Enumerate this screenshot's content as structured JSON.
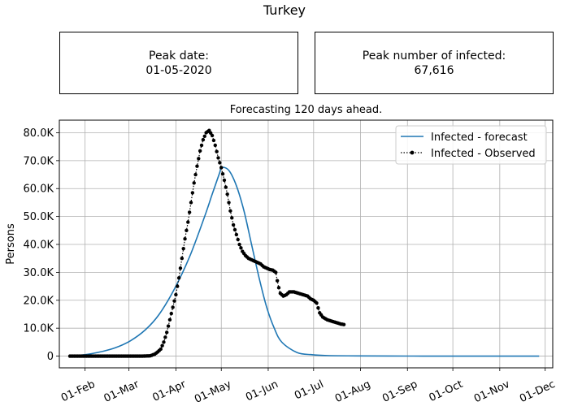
{
  "figure": {
    "title": "Turkey",
    "peak_date_label": "Peak date:",
    "peak_date": "01-05-2020",
    "peak_count_label": "Peak number of infected:",
    "peak_count": "67,616"
  },
  "chart_data": {
    "type": "line",
    "title": "Forecasting 120 days ahead.",
    "xlabel": "",
    "ylabel": "Persons",
    "x_axis": "date",
    "xlim": [
      "2020-01-15",
      "2020-12-06"
    ],
    "ylim": [
      -4200,
      84500
    ],
    "x_tick_labels": [
      "01-Feb",
      "01-Mar",
      "01-Apr",
      "01-May",
      "01-Jun",
      "01-Jul",
      "01-Aug",
      "01-Sep",
      "01-Oct",
      "01-Nov",
      "01-Dec"
    ],
    "x_ticks": [
      "2020-02-01",
      "2020-03-01",
      "2020-04-01",
      "2020-05-01",
      "2020-06-01",
      "2020-07-01",
      "2020-08-01",
      "2020-09-01",
      "2020-10-01",
      "2020-11-01",
      "2020-12-01"
    ],
    "y_ticks": [
      0,
      10000,
      20000,
      30000,
      40000,
      50000,
      60000,
      70000,
      80000
    ],
    "y_tick_labels": [
      "0",
      "10.0K",
      "20.0K",
      "30.0K",
      "40.0K",
      "50.0K",
      "60.0K",
      "70.0K",
      "80.0K"
    ],
    "grid": true,
    "legend": "top-right",
    "colors": {
      "forecast": "#1f77b4",
      "observed": "#000000"
    },
    "series": [
      {
        "name": "Infected - forecast",
        "style": "solid-line",
        "points": [
          [
            "2020-01-22",
            100
          ],
          [
            "2020-02-01",
            500
          ],
          [
            "2020-02-11",
            1500
          ],
          [
            "2020-02-21",
            3000
          ],
          [
            "2020-03-02",
            5500
          ],
          [
            "2020-03-12",
            9500
          ],
          [
            "2020-03-21",
            15000
          ],
          [
            "2020-03-31",
            24000
          ],
          [
            "2020-04-10",
            35500
          ],
          [
            "2020-04-20",
            50000
          ],
          [
            "2020-04-25",
            58000
          ],
          [
            "2020-04-30",
            65800
          ],
          [
            "2020-05-01",
            67616
          ],
          [
            "2020-05-06",
            66500
          ],
          [
            "2020-05-11",
            61000
          ],
          [
            "2020-05-16",
            52000
          ],
          [
            "2020-05-21",
            40000
          ],
          [
            "2020-05-26",
            28000
          ],
          [
            "2020-05-31",
            17500
          ],
          [
            "2020-06-05",
            10000
          ],
          [
            "2020-06-10",
            5000
          ],
          [
            "2020-06-20",
            1300
          ],
          [
            "2020-06-30",
            500
          ],
          [
            "2020-07-10",
            200
          ],
          [
            "2020-07-30",
            70
          ],
          [
            "2020-09-01",
            20
          ],
          [
            "2020-10-01",
            0
          ],
          [
            "2020-11-27",
            0
          ]
        ]
      },
      {
        "name": "Infected - Observed",
        "style": "dotted-line-with-markers",
        "points": [
          [
            "2020-01-22",
            0
          ],
          [
            "2020-02-01",
            0
          ],
          [
            "2020-02-11",
            0
          ],
          [
            "2020-02-21",
            0
          ],
          [
            "2020-03-01",
            0
          ],
          [
            "2020-03-10",
            0
          ],
          [
            "2020-03-15",
            100
          ],
          [
            "2020-03-18",
            700
          ],
          [
            "2020-03-20",
            1500
          ],
          [
            "2020-03-22",
            2500
          ],
          [
            "2020-03-24",
            5000
          ],
          [
            "2020-03-26",
            8500
          ],
          [
            "2020-03-28",
            13000
          ],
          [
            "2020-03-30",
            17500
          ],
          [
            "2020-04-01",
            22000
          ],
          [
            "2020-04-03",
            28000
          ],
          [
            "2020-04-05",
            35000
          ],
          [
            "2020-04-07",
            42000
          ],
          [
            "2020-04-09",
            48000
          ],
          [
            "2020-04-11",
            55000
          ],
          [
            "2020-04-13",
            62000
          ],
          [
            "2020-04-15",
            68000
          ],
          [
            "2020-04-17",
            73500
          ],
          [
            "2020-04-19",
            77500
          ],
          [
            "2020-04-21",
            80000
          ],
          [
            "2020-04-23",
            80800
          ],
          [
            "2020-04-25",
            79000
          ],
          [
            "2020-04-27",
            75500
          ],
          [
            "2020-04-29",
            71000
          ],
          [
            "2020-05-01",
            67500
          ],
          [
            "2020-05-03",
            63000
          ],
          [
            "2020-05-05",
            58000
          ],
          [
            "2020-05-07",
            52000
          ],
          [
            "2020-05-09",
            47000
          ],
          [
            "2020-05-11",
            43500
          ],
          [
            "2020-05-13",
            40000
          ],
          [
            "2020-05-15",
            37500
          ],
          [
            "2020-05-17",
            36000
          ],
          [
            "2020-05-19",
            35000
          ],
          [
            "2020-05-21",
            34500
          ],
          [
            "2020-05-23",
            34000
          ],
          [
            "2020-05-25",
            33500
          ],
          [
            "2020-05-27",
            33000
          ],
          [
            "2020-05-29",
            32000
          ],
          [
            "2020-05-31",
            31500
          ],
          [
            "2020-06-02",
            31000
          ],
          [
            "2020-06-04",
            30800
          ],
          [
            "2020-06-06",
            30000
          ],
          [
            "2020-06-07",
            27000
          ],
          [
            "2020-06-08",
            24500
          ],
          [
            "2020-06-09",
            22500
          ],
          [
            "2020-06-11",
            21500
          ],
          [
            "2020-06-13",
            22000
          ],
          [
            "2020-06-15",
            23000
          ],
          [
            "2020-06-18",
            23000
          ],
          [
            "2020-06-21",
            22500
          ],
          [
            "2020-06-24",
            22000
          ],
          [
            "2020-06-27",
            21500
          ],
          [
            "2020-06-29",
            20500
          ],
          [
            "2020-07-01",
            20000
          ],
          [
            "2020-07-03",
            19000
          ],
          [
            "2020-07-05",
            15500
          ],
          [
            "2020-07-07",
            14000
          ],
          [
            "2020-07-10",
            13000
          ],
          [
            "2020-07-13",
            12500
          ],
          [
            "2020-07-16",
            12000
          ],
          [
            "2020-07-19",
            11500
          ],
          [
            "2020-07-21",
            11300
          ]
        ]
      }
    ]
  }
}
